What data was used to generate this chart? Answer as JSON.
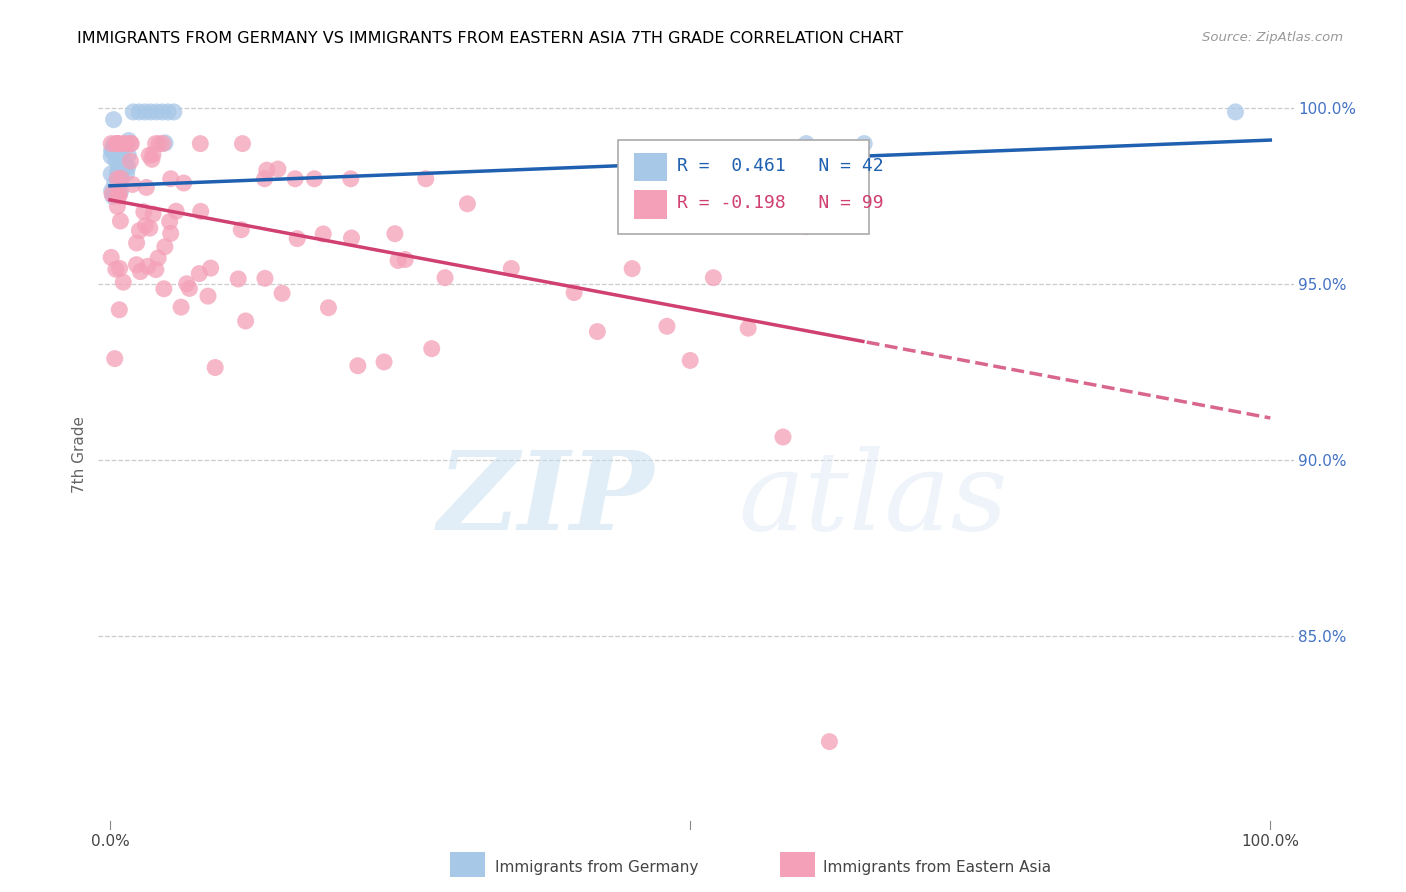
{
  "title": "IMMIGRANTS FROM GERMANY VS IMMIGRANTS FROM EASTERN ASIA 7TH GRADE CORRELATION CHART",
  "source": "Source: ZipAtlas.com",
  "ylabel": "7th Grade",
  "right_ytick_values": [
    0.85,
    0.9,
    0.95,
    1.0
  ],
  "right_ytick_labels": [
    "85.0%",
    "90.0%",
    "95.0%",
    "100.0%"
  ],
  "legend_r_blue": "R =  0.461",
  "legend_n_blue": "N = 42",
  "legend_r_pink": "R = -0.198",
  "legend_n_pink": "N = 99",
  "legend_blue_label": "Immigrants from Germany",
  "legend_pink_label": "Immigrants from Eastern Asia",
  "blue_color": "#a8c8e8",
  "pink_color": "#f4a0b8",
  "blue_line_color": "#2060b0",
  "pink_line_color": "#d04070",
  "watermark_zip": "ZIP",
  "watermark_atlas": "atlas",
  "ylim_low": 0.795,
  "ylim_high": 1.008,
  "xlim_low": -0.01,
  "xlim_high": 1.02,
  "blue_intercept": 0.978,
  "blue_slope": 0.013,
  "pink_intercept": 0.974,
  "pink_slope": -0.062,
  "grid_color": "#cccccc",
  "tick_label_color": "#4472c4",
  "background_color": "#ffffff"
}
